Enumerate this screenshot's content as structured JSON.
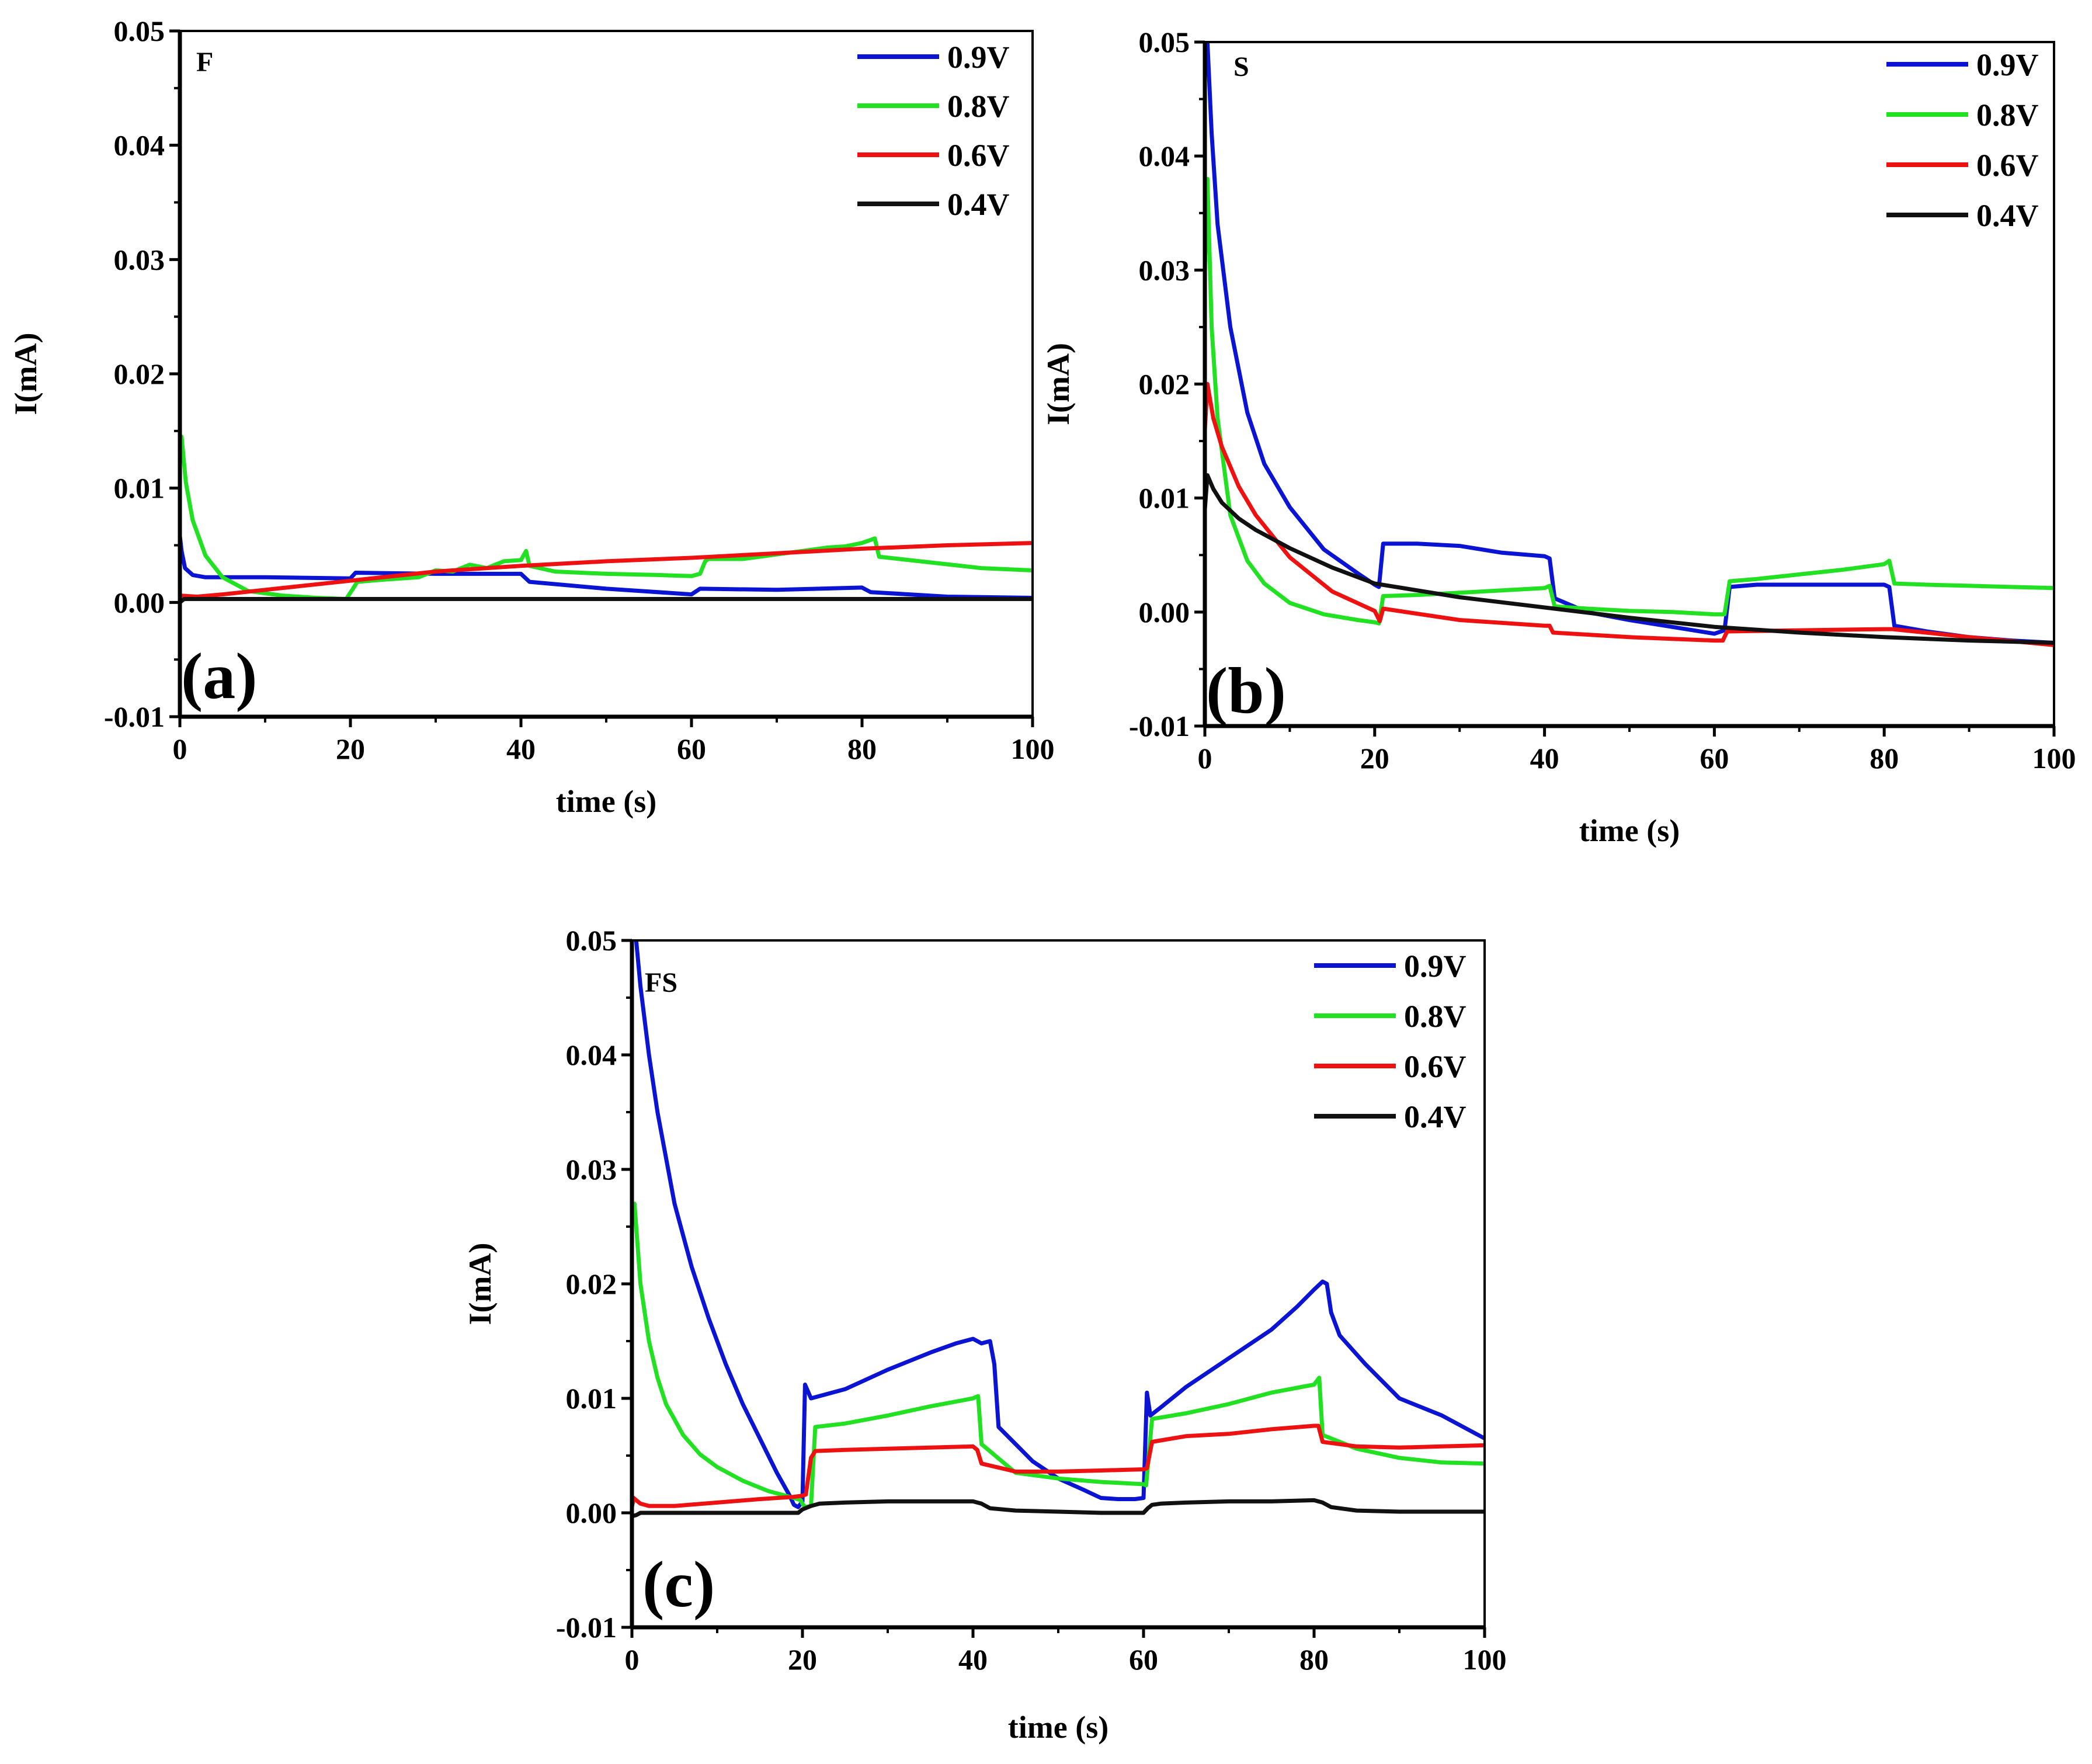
{
  "chart_data": [
    {
      "id": "a",
      "type": "line",
      "panel_label": "(a)",
      "sample_label": "F",
      "xlabel": "time (s)",
      "ylabel": "I(mA)",
      "xlim": [
        0,
        100
      ],
      "ylim": [
        -0.01,
        0.05
      ],
      "xticks": [
        "0",
        "20",
        "40",
        "60",
        "80",
        "100"
      ],
      "yticks": [
        "-0.01",
        "0.00",
        "0.01",
        "0.02",
        "0.03",
        "0.04",
        "0.05"
      ],
      "legend_position": "top-right",
      "grid": false,
      "series": [
        {
          "name": "0.9V",
          "color": "#0a14d2",
          "x": [
            0,
            0.2,
            0.6,
            1.5,
            3,
            5,
            10,
            20,
            20.6,
            30,
            40,
            41,
            50,
            60,
            61,
            70,
            80,
            81,
            90,
            100
          ],
          "y": [
            0.0058,
            0.0045,
            0.003,
            0.0024,
            0.0022,
            0.0022,
            0.0022,
            0.0021,
            0.0026,
            0.0025,
            0.0025,
            0.0018,
            0.0012,
            0.0007,
            0.0012,
            0.0011,
            0.0013,
            0.0009,
            0.0005,
            0.0004
          ]
        },
        {
          "name": "0.8V",
          "color": "#22e022",
          "x": [
            0,
            0.2,
            0.7,
            1.5,
            3,
            5,
            8,
            12,
            16,
            19.5,
            20.3,
            20.8,
            24,
            28,
            30,
            32,
            34,
            36,
            38,
            40,
            40.6,
            41,
            44,
            50,
            56,
            60,
            61,
            61.6,
            62,
            66,
            70,
            74,
            76,
            78,
            80,
            81.5,
            82,
            88,
            94,
            100
          ],
          "y": [
            0.0125,
            0.0145,
            0.0105,
            0.0072,
            0.0041,
            0.0022,
            0.001,
            0.0006,
            0.0004,
            0.0003,
            0.0012,
            0.0018,
            0.002,
            0.0022,
            0.0028,
            0.0027,
            0.0033,
            0.003,
            0.0036,
            0.0037,
            0.0045,
            0.0032,
            0.0027,
            0.0025,
            0.0024,
            0.0023,
            0.0025,
            0.0036,
            0.0038,
            0.0038,
            0.0042,
            0.0046,
            0.0048,
            0.0049,
            0.0052,
            0.0056,
            0.004,
            0.0035,
            0.003,
            0.0028
          ]
        },
        {
          "name": "0.6V",
          "color": "#ee1111",
          "x": [
            0,
            2,
            5,
            10,
            20,
            30,
            40,
            50,
            60,
            70,
            80,
            90,
            100
          ],
          "y": [
            0.0006,
            0.0005,
            0.0007,
            0.0011,
            0.0019,
            0.0027,
            0.0032,
            0.0036,
            0.0039,
            0.0043,
            0.0047,
            0.005,
            0.0052
          ]
        },
        {
          "name": "0.4V",
          "color": "#111111",
          "x": [
            0,
            0.5,
            5,
            20,
            40,
            60,
            80,
            100
          ],
          "y": [
            0.0,
            0.0003,
            0.0003,
            0.0003,
            0.0003,
            0.0003,
            0.0003,
            0.0003
          ]
        }
      ]
    },
    {
      "id": "b",
      "type": "line",
      "panel_label": "(b)",
      "sample_label": "S",
      "xlabel": "time (s)",
      "ylabel": "I(mA)",
      "xlim": [
        0,
        100
      ],
      "ylim": [
        -0.01,
        0.05
      ],
      "xticks": [
        "0",
        "20",
        "40",
        "60",
        "80",
        "100"
      ],
      "yticks": [
        "-0.01",
        "0.00",
        "0.01",
        "0.02",
        "0.03",
        "0.04",
        "0.05"
      ],
      "legend_position": "top-right",
      "grid": false,
      "series": [
        {
          "name": "0.9V",
          "color": "#0a14d2",
          "x": [
            0,
            0.3,
            0.8,
            1.5,
            3,
            5,
            7,
            10,
            14,
            18,
            20,
            20.5,
            21,
            25,
            30,
            35,
            40,
            40.6,
            41.2,
            45,
            50,
            55,
            60,
            61.2,
            61.8,
            65,
            70,
            75,
            80,
            80.6,
            81.2,
            85,
            90,
            95,
            100
          ],
          "y": [
            0.047,
            0.05,
            0.042,
            0.034,
            0.025,
            0.0175,
            0.013,
            0.0092,
            0.0055,
            0.0034,
            0.0024,
            0.0022,
            0.006,
            0.006,
            0.0058,
            0.0052,
            0.0049,
            0.0047,
            0.0012,
            0.0,
            -0.0007,
            -0.0013,
            -0.0019,
            -0.0016,
            0.0022,
            0.0024,
            0.0024,
            0.0024,
            0.0024,
            0.0022,
            -0.0012,
            -0.0017,
            -0.0022,
            -0.0025,
            -0.0027
          ]
        },
        {
          "name": "0.8V",
          "color": "#22e022",
          "x": [
            0,
            0.3,
            0.8,
            1.5,
            3,
            5,
            7,
            10,
            14,
            18,
            20,
            20.5,
            21,
            25,
            30,
            35,
            40,
            40.6,
            41.2,
            45,
            50,
            55,
            60,
            61.2,
            61.8,
            65,
            70,
            75,
            80,
            80.6,
            81.2,
            85,
            90,
            95,
            100
          ],
          "y": [
            0.03,
            0.038,
            0.025,
            0.017,
            0.0085,
            0.0045,
            0.0025,
            0.0008,
            -0.0002,
            -0.0007,
            -0.0009,
            -0.001,
            0.0014,
            0.0015,
            0.0017,
            0.0019,
            0.0021,
            0.0023,
            0.0005,
            0.0003,
            0.0001,
            0.0,
            -0.0002,
            -0.0002,
            0.0027,
            0.0029,
            0.0033,
            0.0037,
            0.0042,
            0.0045,
            0.0025,
            0.0024,
            0.0023,
            0.0022,
            0.0021
          ]
        },
        {
          "name": "0.6V",
          "color": "#ee1111",
          "x": [
            0,
            0.3,
            1,
            2,
            4,
            6,
            10,
            15,
            20,
            20.6,
            21,
            30,
            40,
            40.6,
            41,
            50,
            60,
            61,
            61.5,
            70,
            80,
            81,
            90,
            100
          ],
          "y": [
            0.016,
            0.02,
            0.017,
            0.0145,
            0.011,
            0.0085,
            0.0048,
            0.0018,
            0.0001,
            -0.0008,
            0.0003,
            -0.0007,
            -0.0012,
            -0.0012,
            -0.0018,
            -0.0022,
            -0.0025,
            -0.0025,
            -0.0017,
            -0.0016,
            -0.0015,
            -0.0015,
            -0.0022,
            -0.0029
          ]
        },
        {
          "name": "0.4V",
          "color": "#111111",
          "x": [
            0,
            0.3,
            1,
            2,
            4,
            6,
            10,
            15,
            20,
            30,
            40,
            50,
            60,
            70,
            80,
            90,
            100
          ],
          "y": [
            0.009,
            0.012,
            0.0108,
            0.0096,
            0.0082,
            0.0072,
            0.0056,
            0.0039,
            0.0025,
            0.0013,
            0.0004,
            -0.0005,
            -0.0013,
            -0.0018,
            -0.0022,
            -0.0025,
            -0.0027
          ]
        }
      ]
    },
    {
      "id": "c",
      "type": "line",
      "panel_label": "(c)",
      "sample_label": "FS",
      "xlabel": "time (s)",
      "ylabel": "I(mA)",
      "xlim": [
        0,
        100
      ],
      "ylim": [
        -0.01,
        0.05
      ],
      "xticks": [
        "0",
        "20",
        "40",
        "60",
        "80",
        "100"
      ],
      "yticks": [
        "-0.01",
        "0.00",
        "0.01",
        "0.02",
        "0.03",
        "0.04",
        "0.05"
      ],
      "legend_position": "top-right",
      "grid": false,
      "series": [
        {
          "name": "0.9V",
          "color": "#0a14d2",
          "x": [
            0.5,
            1,
            2,
            3,
            4,
            5,
            7,
            9,
            11,
            13,
            15,
            17,
            18.5,
            19,
            19.5,
            20,
            20.3,
            21,
            25,
            30,
            35,
            38,
            40,
            41,
            42,
            42.5,
            43,
            45,
            47,
            50,
            53,
            55,
            57,
            59,
            60,
            60.4,
            60.8,
            62,
            65,
            70,
            75,
            78,
            80,
            81,
            81.5,
            82,
            83,
            86,
            90,
            95,
            100
          ],
          "y": [
            0.05,
            0.046,
            0.04,
            0.035,
            0.031,
            0.027,
            0.0215,
            0.017,
            0.013,
            0.0095,
            0.0065,
            0.0035,
            0.0015,
            0.0007,
            0.0005,
            0.001,
            0.0112,
            0.01,
            0.0108,
            0.0125,
            0.014,
            0.0148,
            0.0152,
            0.0148,
            0.015,
            0.013,
            0.0075,
            0.006,
            0.0045,
            0.003,
            0.002,
            0.0013,
            0.0012,
            0.0012,
            0.0013,
            0.0105,
            0.0085,
            0.0092,
            0.011,
            0.0135,
            0.016,
            0.018,
            0.0195,
            0.0202,
            0.02,
            0.0175,
            0.0155,
            0.013,
            0.01,
            0.0085,
            0.0065
          ]
        },
        {
          "name": "0.8V",
          "color": "#22e022",
          "x": [
            0.3,
            1,
            2,
            3,
            4,
            6,
            8,
            10,
            13,
            16,
            18,
            19,
            19.8,
            20,
            20.3,
            21,
            21.5,
            25,
            30,
            35,
            40,
            40.6,
            41,
            45,
            50,
            55,
            60,
            60.3,
            61,
            65,
            70,
            75,
            80,
            80.6,
            81,
            85,
            90,
            95,
            100
          ],
          "y": [
            0.027,
            0.02,
            0.015,
            0.0118,
            0.0095,
            0.0068,
            0.0051,
            0.004,
            0.0028,
            0.0019,
            0.0015,
            0.0013,
            0.0011,
            0.0008,
            0.0005,
            0.0006,
            0.0075,
            0.0078,
            0.0085,
            0.0093,
            0.01,
            0.0102,
            0.006,
            0.0035,
            0.003,
            0.0027,
            0.0025,
            0.0024,
            0.0082,
            0.0087,
            0.0095,
            0.0105,
            0.0112,
            0.0118,
            0.0068,
            0.0056,
            0.0048,
            0.0044,
            0.0043
          ]
        },
        {
          "name": "0.6V",
          "color": "#ee1111",
          "x": [
            0,
            0.2,
            0.5,
            1,
            2,
            5,
            10,
            15,
            19,
            20,
            20.4,
            21,
            21.5,
            25,
            30,
            35,
            40,
            40.5,
            41,
            45,
            50,
            55,
            60,
            60.4,
            61,
            65,
            70,
            75,
            80,
            80.5,
            81,
            85,
            90,
            95,
            100
          ],
          "y": [
            0.0005,
            0.0013,
            0.0011,
            0.0008,
            0.0006,
            0.0006,
            0.0009,
            0.0012,
            0.0014,
            0.0015,
            0.0016,
            0.0048,
            0.0054,
            0.0055,
            0.0056,
            0.0057,
            0.0058,
            0.0055,
            0.0043,
            0.0036,
            0.0036,
            0.0037,
            0.0038,
            0.0039,
            0.0062,
            0.0067,
            0.0069,
            0.0073,
            0.0076,
            0.0076,
            0.0062,
            0.0058,
            0.0057,
            0.0058,
            0.0059
          ]
        },
        {
          "name": "0.4V",
          "color": "#111111",
          "x": [
            0,
            0.5,
            1,
            5,
            10,
            15,
            19.5,
            20,
            21,
            22,
            25,
            30,
            35,
            40,
            41,
            42,
            45,
            50,
            55,
            60,
            60.5,
            61,
            62,
            65,
            70,
            75,
            80,
            81,
            82,
            85,
            90,
            95,
            100
          ],
          "y": [
            -0.0003,
            -0.0002,
            0.0,
            0.0,
            0.0,
            0.0,
            0.0,
            0.0003,
            0.0006,
            0.0008,
            0.0009,
            0.001,
            0.001,
            0.001,
            0.0008,
            0.0004,
            0.0002,
            0.0001,
            0.0,
            0.0,
            0.0004,
            0.0007,
            0.0008,
            0.0009,
            0.001,
            0.001,
            0.0011,
            0.0009,
            0.0005,
            0.0002,
            0.0001,
            0.0001,
            0.0001
          ]
        }
      ]
    }
  ]
}
